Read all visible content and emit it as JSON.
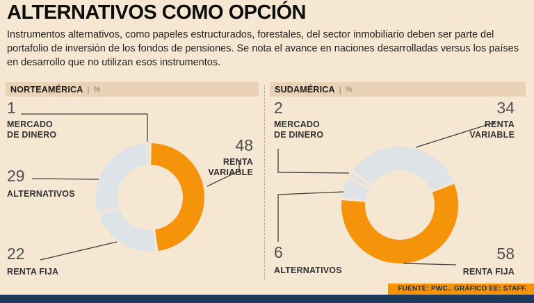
{
  "header": {
    "title": "ALTERNATIVOS COMO OPCIÓN",
    "description": "Instrumentos alternativos, como papeles estructurados, forestales, del sector inmobiliario deben ser parte del portafolio de inversión de los fondos de pensiones. Se nota el avance en naciones desarrolladas versus los países en desarrollo que no utilizan esos instrumentos."
  },
  "footer": {
    "source": "FUENTE: PWC.. GRÁFICO EE: STAFF."
  },
  "colors": {
    "background": "#f6e7d3",
    "panel_header": "#e9d2b6",
    "accent_orange": "#f5930b",
    "slice_gray": "#dee3e8",
    "navy_bar": "#1b3a5c"
  },
  "chart_data": [
    {
      "type": "donut",
      "title": "NORTEAMÉRICA",
      "unit": "%",
      "start_angle": -3.6,
      "segments": [
        {
          "label": "MERCADO DE DINERO",
          "value": 1,
          "color": "#dee3e8"
        },
        {
          "label": "RENTA VARIABLE",
          "value": 48,
          "color": "#f5930b"
        },
        {
          "label": "RENTA FIJA",
          "value": 22,
          "color": "#dee3e8"
        },
        {
          "label": "ALTERNATIVOS",
          "value": 29,
          "color": "#dee3e8"
        }
      ]
    },
    {
      "type": "donut",
      "title": "SUDAMÉRICA",
      "unit": "%",
      "start_angle": -55,
      "segments": [
        {
          "label": "RENTA VARIABLE",
          "value": 34,
          "color": "#dee3e8"
        },
        {
          "label": "RENTA FIJA",
          "value": 58,
          "color": "#f5930b"
        },
        {
          "label": "ALTERNATIVOS",
          "value": 6,
          "color": "#dee3e8"
        },
        {
          "label": "MERCADO DE DINERO",
          "value": 2,
          "color": "#dee3e8"
        }
      ]
    }
  ]
}
